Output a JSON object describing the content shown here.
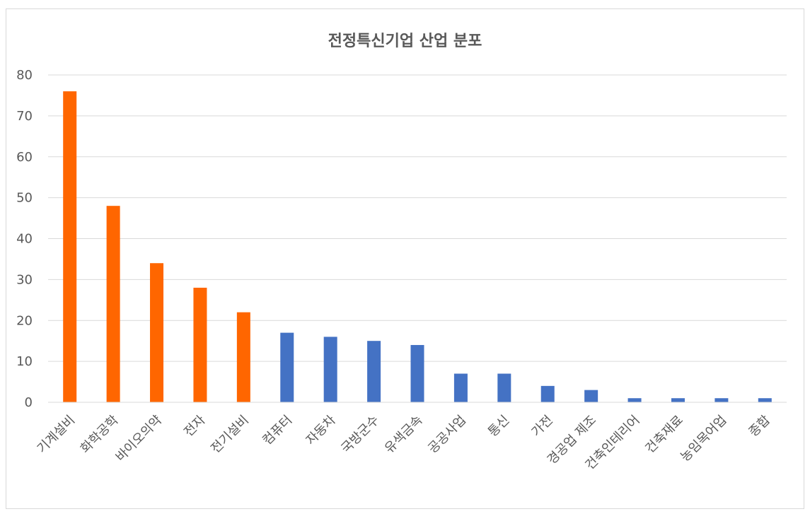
{
  "chart_data": {
    "type": "bar",
    "title": "전정특신기업 산업 분포",
    "xlabel": "",
    "ylabel": "",
    "ylim": [
      0,
      80
    ],
    "yticks": [
      0,
      10,
      20,
      30,
      40,
      50,
      60,
      70,
      80
    ],
    "grid": true,
    "categories": [
      "기계설비",
      "화학공학",
      "바이오의약",
      "전자",
      "전기설비",
      "컴퓨터",
      "자동차",
      "국방군수",
      "유색금속",
      "공공사업",
      "통신",
      "가전",
      "경공업 제조",
      "건축인테리어",
      "건축재료",
      "농임목어업",
      "종합"
    ],
    "values": [
      76,
      48,
      34,
      28,
      22,
      17,
      16,
      15,
      14,
      7,
      7,
      4,
      3,
      1,
      1,
      1,
      1
    ],
    "bar_colors": [
      "#ff6600",
      "#ff6600",
      "#ff6600",
      "#ff6600",
      "#ff6600",
      "#4472c4",
      "#4472c4",
      "#4472c4",
      "#4472c4",
      "#4472c4",
      "#4472c4",
      "#4472c4",
      "#4472c4",
      "#4472c4",
      "#4472c4",
      "#4472c4",
      "#4472c4"
    ]
  }
}
